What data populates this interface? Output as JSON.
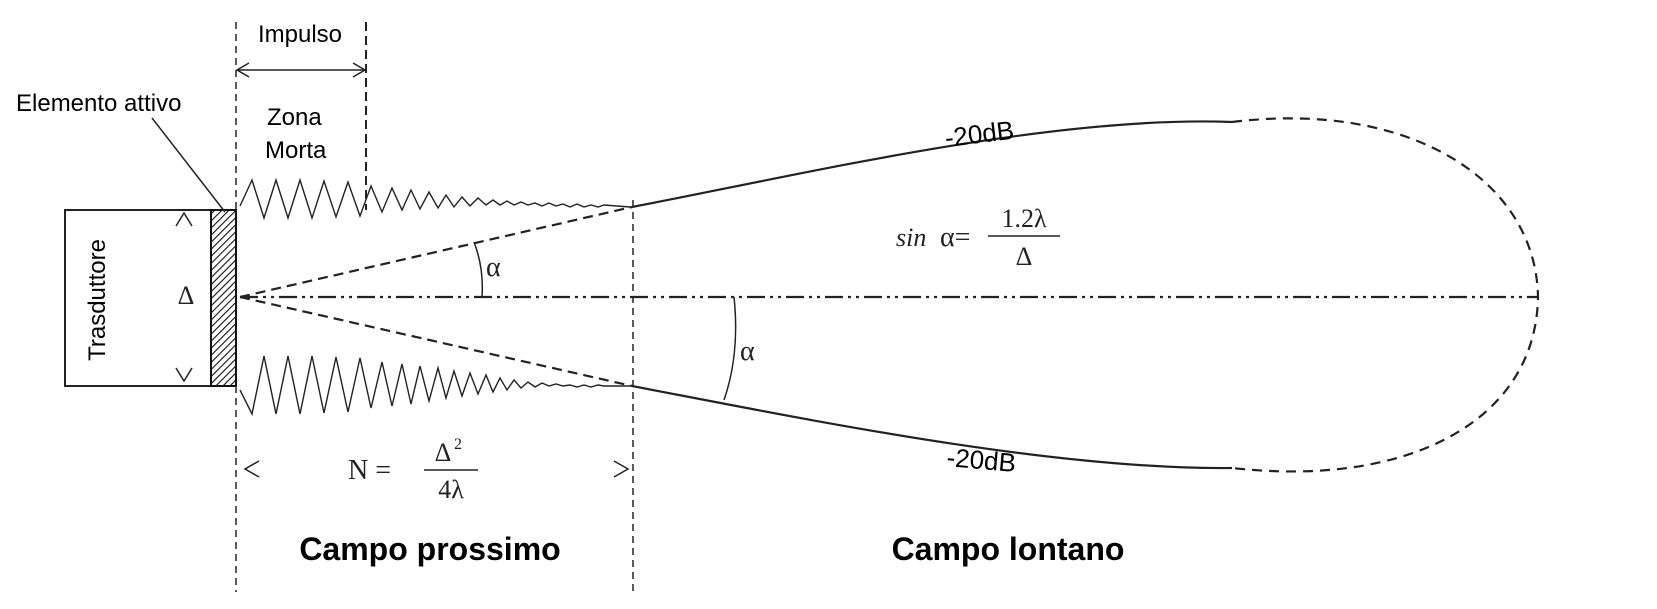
{
  "labels": {
    "transducer": "Trasduttore",
    "active_element": "Elemento attivo",
    "pulse": "Impulso",
    "dead_zone_line1": "Zona",
    "dead_zone_line2": "Morta",
    "diameter": "Δ",
    "alpha_upper": "α",
    "alpha_lower": "α",
    "db_upper": "-20dB",
    "db_lower": "-20dB",
    "near_field": "Campo prossimo",
    "far_field": "Campo lontano"
  },
  "formulas": {
    "sin_prefix": "sin",
    "sin_alpha": "α=",
    "sin_numerator": "1.2λ",
    "sin_denominator": "Δ",
    "n_left": "N =",
    "n_numerator": "Δ",
    "n_exponent": "2",
    "n_denominator": "4λ"
  }
}
